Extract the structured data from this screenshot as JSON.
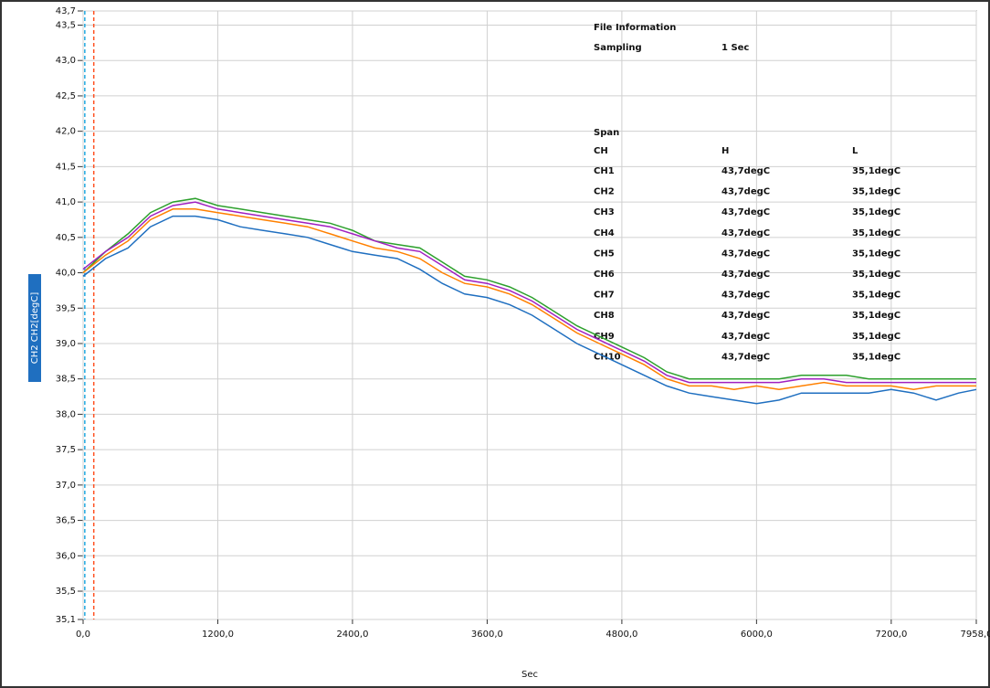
{
  "chart_data": {
    "type": "line",
    "xlabel": "Sec",
    "ylabel": "CH2  CH2[degC]",
    "x": [
      0,
      200,
      400,
      600,
      800,
      1000,
      1200,
      1400,
      1600,
      1800,
      2000,
      2200,
      2400,
      2600,
      2800,
      3000,
      3200,
      3400,
      3600,
      3800,
      4000,
      4200,
      4400,
      4600,
      4800,
      5000,
      5200,
      5400,
      5600,
      5800,
      6000,
      6200,
      6400,
      6600,
      6800,
      7000,
      7200,
      7400,
      7600,
      7800,
      7958
    ],
    "series": [
      {
        "color": "#2ca02c",
        "values": [
          40.0,
          40.3,
          40.55,
          40.85,
          41.0,
          41.05,
          40.95,
          40.9,
          40.85,
          40.8,
          40.75,
          40.7,
          40.6,
          40.45,
          40.4,
          40.35,
          40.15,
          39.95,
          39.9,
          39.8,
          39.65,
          39.45,
          39.25,
          39.1,
          38.95,
          38.8,
          38.6,
          38.5,
          38.5,
          38.5,
          38.5,
          38.5,
          38.55,
          38.55,
          38.55,
          38.5,
          38.5,
          38.5,
          38.5,
          38.5,
          38.5
        ]
      },
      {
        "color": "#a020c0",
        "values": [
          40.05,
          40.3,
          40.5,
          40.8,
          40.95,
          41.0,
          40.9,
          40.85,
          40.8,
          40.75,
          40.7,
          40.65,
          40.55,
          40.45,
          40.35,
          40.3,
          40.1,
          39.9,
          39.85,
          39.75,
          39.6,
          39.4,
          39.2,
          39.05,
          38.9,
          38.75,
          38.55,
          38.45,
          38.45,
          38.45,
          38.45,
          38.45,
          38.5,
          38.5,
          38.45,
          38.45,
          38.45,
          38.45,
          38.45,
          38.45,
          38.45
        ]
      },
      {
        "color": "#ff8000",
        "values": [
          40.0,
          40.25,
          40.45,
          40.75,
          40.9,
          40.9,
          40.85,
          40.8,
          40.75,
          40.7,
          40.65,
          40.55,
          40.45,
          40.35,
          40.3,
          40.2,
          40.0,
          39.85,
          39.8,
          39.7,
          39.55,
          39.35,
          39.15,
          39.0,
          38.85,
          38.7,
          38.5,
          38.4,
          38.4,
          38.35,
          38.4,
          38.35,
          38.4,
          38.45,
          38.4,
          38.4,
          38.4,
          38.35,
          38.4,
          38.4,
          38.4
        ]
      },
      {
        "color": "#1f6fc0",
        "values": [
          39.95,
          40.2,
          40.35,
          40.65,
          40.8,
          40.8,
          40.75,
          40.65,
          40.6,
          40.55,
          40.5,
          40.4,
          40.3,
          40.25,
          40.2,
          40.05,
          39.85,
          39.7,
          39.65,
          39.55,
          39.4,
          39.2,
          39.0,
          38.85,
          38.7,
          38.55,
          38.4,
          38.3,
          38.25,
          38.2,
          38.15,
          38.2,
          38.3,
          38.3,
          38.3,
          38.3,
          38.35,
          38.3,
          38.2,
          38.3,
          38.35
        ]
      }
    ],
    "cursors": [
      {
        "color": "#20a8e0",
        "x": 15
      },
      {
        "color": "#ff5020",
        "x": 95
      }
    ],
    "xlim": [
      0,
      7958
    ],
    "xticks": [
      {
        "value": 0,
        "label": "0,0"
      },
      {
        "value": 1200,
        "label": "1200,0"
      },
      {
        "value": 2400,
        "label": "2400,0"
      },
      {
        "value": 3600,
        "label": "3600,0"
      },
      {
        "value": 4800,
        "label": "4800,0"
      },
      {
        "value": 6000,
        "label": "6000,0"
      },
      {
        "value": 7200,
        "label": "7200,0"
      },
      {
        "value": 7958,
        "label": "7958,0"
      }
    ],
    "ylim": [
      35.1,
      43.7
    ],
    "yticks": [
      {
        "value": 35.1,
        "label": "35,1"
      },
      {
        "value": 35.5,
        "label": "35,5"
      },
      {
        "value": 36.0,
        "label": "36,0"
      },
      {
        "value": 36.5,
        "label": "36,5"
      },
      {
        "value": 37.0,
        "label": "37,0"
      },
      {
        "value": 37.5,
        "label": "37,5"
      },
      {
        "value": 38.0,
        "label": "38,0"
      },
      {
        "value": 38.5,
        "label": "38,5"
      },
      {
        "value": 39.0,
        "label": "39,0"
      },
      {
        "value": 39.5,
        "label": "39,5"
      },
      {
        "value": 40.0,
        "label": "40,0"
      },
      {
        "value": 40.5,
        "label": "40,5"
      },
      {
        "value": 41.0,
        "label": "41,0"
      },
      {
        "value": 41.5,
        "label": "41,5"
      },
      {
        "value": 42.0,
        "label": "42,0"
      },
      {
        "value": 42.5,
        "label": "42,5"
      },
      {
        "value": 43.0,
        "label": "43,0"
      },
      {
        "value": 43.5,
        "label": "43,5"
      },
      {
        "value": 43.7,
        "label": "43,7"
      }
    ],
    "grid": true,
    "info": {
      "title": "File Information",
      "sampling_label": "Sampling",
      "sampling_value": "1 Sec",
      "span_label": "Span",
      "columns": [
        "CH",
        "H",
        "L"
      ],
      "rows": [
        [
          "CH1",
          "43,7degC",
          "35,1degC"
        ],
        [
          "CH2",
          "43,7degC",
          "35,1degC"
        ],
        [
          "CH3",
          "43,7degC",
          "35,1degC"
        ],
        [
          "CH4",
          "43,7degC",
          "35,1degC"
        ],
        [
          "CH5",
          "43,7degC",
          "35,1degC"
        ],
        [
          "CH6",
          "43,7degC",
          "35,1degC"
        ],
        [
          "CH7",
          "43,7degC",
          "35,1degC"
        ],
        [
          "CH8",
          "43,7degC",
          "35,1degC"
        ],
        [
          "CH9",
          "43,7degC",
          "35,1degC"
        ],
        [
          "CH10",
          "43,7degC",
          "35,1degC"
        ]
      ]
    }
  }
}
